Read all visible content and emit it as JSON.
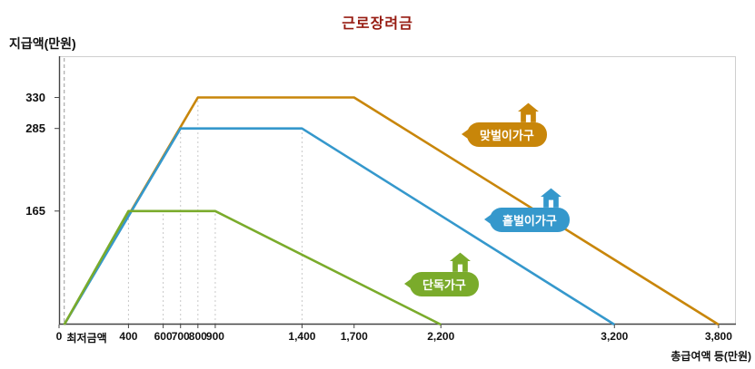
{
  "colors": {
    "title": "#961a10",
    "axis_text": "#111111"
  },
  "chart_data": {
    "type": "line",
    "title": "근로장려금",
    "ylabel": "지급액(만원)",
    "xlabel": "총급여액 등(만원)",
    "xlim": [
      0,
      3900
    ],
    "ylim": [
      0,
      390
    ],
    "grid": "dotted-vertical-guides",
    "legend_position": "on-chart-badges",
    "min_wage_line_x": 30,
    "yticks": [
      {
        "value": 165,
        "label": "165"
      },
      {
        "value": 285,
        "label": "285"
      },
      {
        "value": 330,
        "label": "330"
      }
    ],
    "xticks": [
      {
        "value": 0,
        "label": "0",
        "tick": true
      },
      {
        "value": 160,
        "label": "최저금액",
        "tick": false
      },
      {
        "value": 400,
        "label": "400",
        "tick": true
      },
      {
        "value": 600,
        "label": "600",
        "tick": true
      },
      {
        "value": 700,
        "label": "700",
        "tick": true
      },
      {
        "value": 800,
        "label": "800",
        "tick": true
      },
      {
        "value": 900,
        "label": "900",
        "tick": true
      },
      {
        "value": 1400,
        "label": "1,400",
        "tick": true
      },
      {
        "value": 1700,
        "label": "1,700",
        "tick": true
      },
      {
        "value": 2200,
        "label": "2,200",
        "tick": true
      },
      {
        "value": 3200,
        "label": "3,200",
        "tick": true
      },
      {
        "value": 3800,
        "label": "3,800",
        "tick": true
      }
    ],
    "guides": [
      [
        400,
        165
      ],
      [
        600,
        165
      ],
      [
        700,
        285
      ],
      [
        800,
        330
      ],
      [
        900,
        165
      ],
      [
        1400,
        285
      ]
    ],
    "series": [
      {
        "name": "맞벌이가구",
        "color": "#c8860a",
        "points": [
          [
            30,
            0
          ],
          [
            800,
            330
          ],
          [
            1700,
            330
          ],
          [
            3800,
            0
          ]
        ]
      },
      {
        "name": "홑벌이가구",
        "color": "#3598cc",
        "points": [
          [
            30,
            0
          ],
          [
            700,
            285
          ],
          [
            1400,
            285
          ],
          [
            3200,
            0
          ]
        ]
      },
      {
        "name": "단독가구",
        "color": "#7aab2b",
        "points": [
          [
            30,
            0
          ],
          [
            400,
            165
          ],
          [
            900,
            165
          ],
          [
            2200,
            0
          ]
        ]
      }
    ]
  }
}
